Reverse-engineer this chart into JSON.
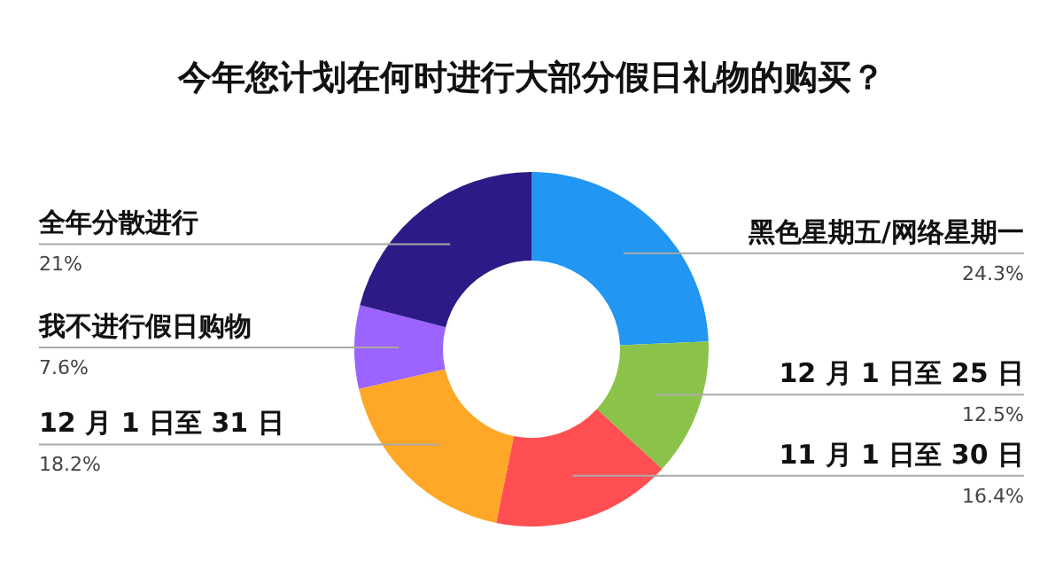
{
  "chart_data": {
    "type": "donut",
    "title": "今年您计划在何时进行大部分假日礼物的购买？",
    "categories": [
      "黑色星期五/网络星期一",
      "12 月 1 日至 25 日",
      "11 月 1 日至 30 日",
      "12 月 1 日至 31 日",
      "我不进行假日购物",
      "全年分散进行"
    ],
    "values": [
      24.3,
      12.5,
      16.4,
      18.2,
      7.6,
      21
    ],
    "colors": [
      "#2196f3",
      "#8bc34a",
      "#ff4f52",
      "#ffa726",
      "#9b63ff",
      "#2e1a87"
    ],
    "value_labels": [
      "24.3%",
      "12.5%",
      "16.4%",
      "18.2%",
      "7.6%",
      "21%"
    ]
  }
}
